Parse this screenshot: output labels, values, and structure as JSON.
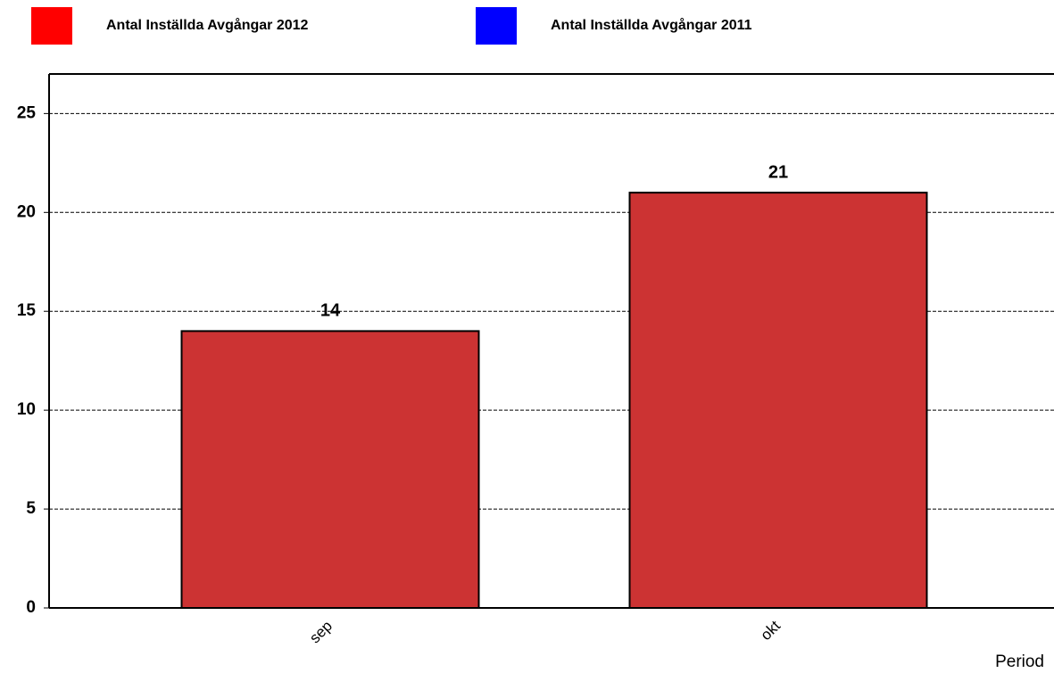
{
  "chart_data": {
    "type": "bar",
    "categories": [
      "sep",
      "okt"
    ],
    "series": [
      {
        "name": "Antal Inställda Avgångar 2012",
        "color": "#ff0000",
        "bar_color": "#cc3333",
        "values": [
          14,
          21
        ]
      },
      {
        "name": "Antal Inställda Avgångar 2011",
        "color": "#0000ff",
        "values": [
          null,
          null
        ]
      }
    ],
    "x_label": "Period",
    "ylim": [
      0,
      27
    ],
    "yticks": [
      0,
      5,
      10,
      15,
      20,
      25
    ],
    "grid": true
  }
}
